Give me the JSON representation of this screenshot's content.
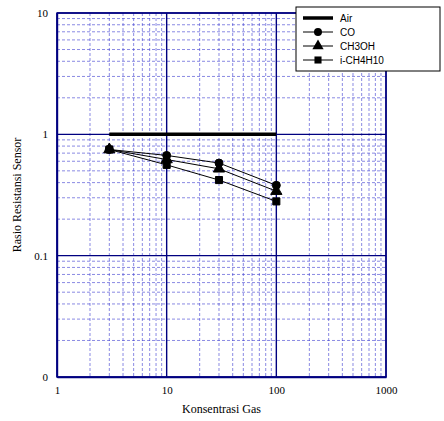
{
  "chart_data": {
    "type": "line",
    "x_label": "Konsentrasi Gas",
    "y_label": "Rasio Resistansi Sensor",
    "log": true,
    "grid": true,
    "legend": "upper right",
    "xlim": [
      1,
      1000
    ],
    "ylim": [
      0.01,
      10
    ],
    "xticks": [
      1,
      10,
      100,
      1000
    ],
    "yticks": [
      {
        "value": 0.01,
        "label": "0"
      },
      0.1,
      1,
      10
    ],
    "series": [
      {
        "name": "Air",
        "color": "#000000",
        "marker": "none",
        "line_style": "thick",
        "x": [
          3,
          100
        ],
        "values": [
          1,
          1
        ]
      },
      {
        "name": "CO",
        "color": "#000000",
        "marker": "circle",
        "line_style": "solid",
        "x": [
          3,
          10,
          30,
          100
        ],
        "values": [
          0.75,
          0.67,
          0.58,
          0.38
        ]
      },
      {
        "name": "CH3OH",
        "color": "#000000",
        "marker": "triangle",
        "line_style": "solid",
        "x": [
          3,
          10,
          30,
          100
        ],
        "values": [
          0.75,
          0.62,
          0.52,
          0.34
        ]
      },
      {
        "name": "i-CH4H10",
        "color": "#000000",
        "marker": "square",
        "line_style": "solid",
        "x": [
          3,
          10,
          30,
          100
        ],
        "values": [
          0.75,
          0.56,
          0.42,
          0.28
        ]
      }
    ]
  }
}
